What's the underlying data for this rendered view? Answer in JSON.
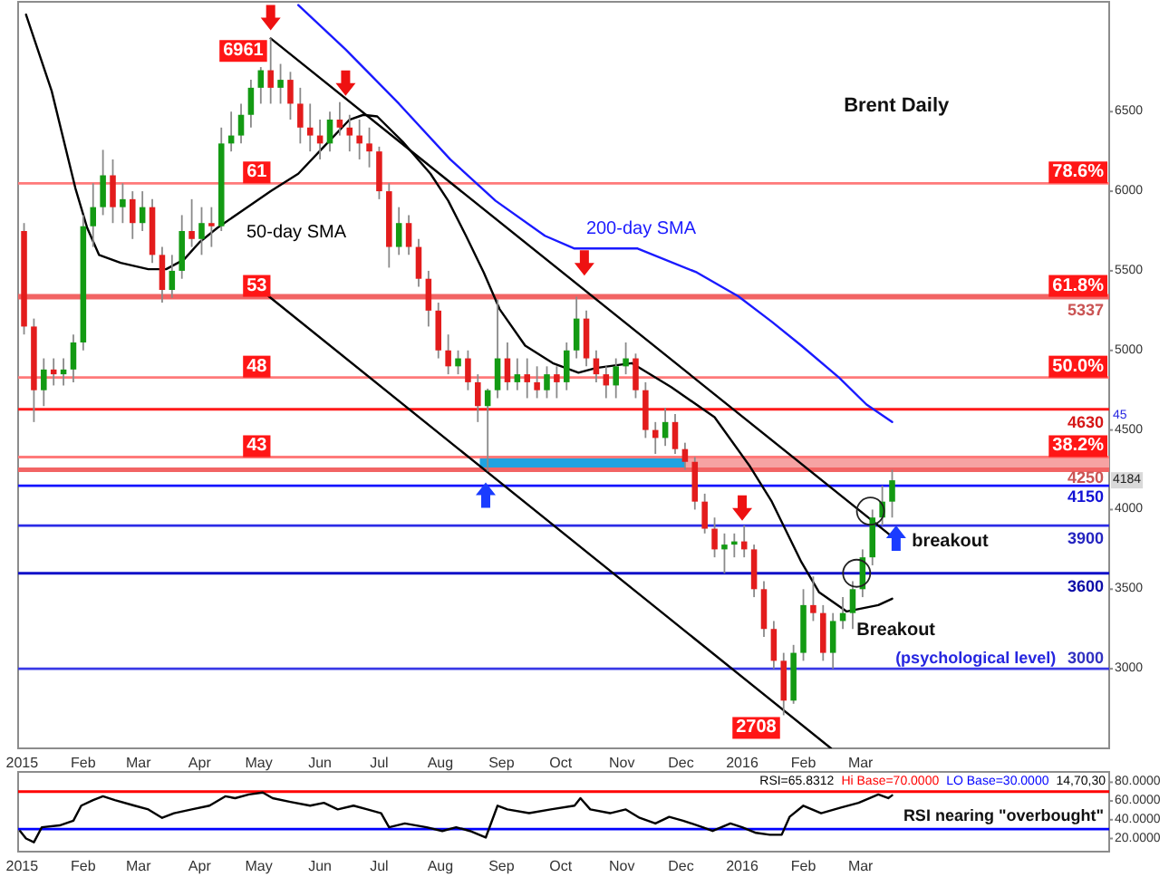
{
  "chart_data": [
    {
      "type": "candlestick",
      "title": "Brent Daily",
      "x": [
        "2015-01-02",
        "2015-01-07",
        "2015-01-12",
        "2015-01-17",
        "2015-01-22",
        "2015-01-27",
        "2015-02-01",
        "2015-02-06",
        "2015-02-11",
        "2015-02-16",
        "2015-02-21",
        "2015-02-26",
        "2015-03-03",
        "2015-03-08",
        "2015-03-13",
        "2015-03-18",
        "2015-03-23",
        "2015-03-28",
        "2015-04-02",
        "2015-04-07",
        "2015-04-12",
        "2015-04-17",
        "2015-04-22",
        "2015-04-27",
        "2015-05-02",
        "2015-05-07",
        "2015-05-12",
        "2015-05-17",
        "2015-05-22",
        "2015-05-27",
        "2015-06-01",
        "2015-06-06",
        "2015-06-11",
        "2015-06-16",
        "2015-06-21",
        "2015-06-26",
        "2015-07-01",
        "2015-07-06",
        "2015-07-11",
        "2015-07-16",
        "2015-07-21",
        "2015-07-26",
        "2015-07-31",
        "2015-08-05",
        "2015-08-10",
        "2015-08-15",
        "2015-08-20",
        "2015-08-25",
        "2015-08-30",
        "2015-09-04",
        "2015-09-09",
        "2015-09-14",
        "2015-09-19",
        "2015-09-24",
        "2015-09-29",
        "2015-10-04",
        "2015-10-09",
        "2015-10-14",
        "2015-10-19",
        "2015-10-24",
        "2015-10-29",
        "2015-11-03",
        "2015-11-08",
        "2015-11-13",
        "2015-11-18",
        "2015-11-23",
        "2015-11-28",
        "2015-12-03",
        "2015-12-08",
        "2015-12-13",
        "2015-12-18",
        "2015-12-23",
        "2015-12-28",
        "2016-01-02",
        "2016-01-07",
        "2016-01-12",
        "2016-01-17",
        "2016-01-22",
        "2016-01-27",
        "2016-02-01",
        "2016-02-06",
        "2016-02-11",
        "2016-02-16",
        "2016-02-21",
        "2016-02-26",
        "2016-03-02",
        "2016-03-07",
        "2016-03-12",
        "2016-03-17"
      ],
      "ohlc": [
        [
          5750,
          5800,
          5100,
          5150
        ],
        [
          5150,
          5200,
          4550,
          4750
        ],
        [
          4750,
          4950,
          4650,
          4880
        ],
        [
          4880,
          4950,
          4780,
          4850
        ],
        [
          4850,
          4950,
          4780,
          4880
        ],
        [
          4880,
          5100,
          4800,
          5050
        ],
        [
          5050,
          5850,
          5000,
          5780
        ],
        [
          5780,
          6050,
          5650,
          5900
        ],
        [
          5900,
          6260,
          5850,
          6100
        ],
        [
          6100,
          6200,
          5800,
          5900
        ],
        [
          5900,
          6050,
          5800,
          5950
        ],
        [
          5950,
          6000,
          5700,
          5800
        ],
        [
          5800,
          6000,
          5750,
          5900
        ],
        [
          5900,
          5950,
          5550,
          5600
        ],
        [
          5600,
          5650,
          5300,
          5380
        ],
        [
          5380,
          5600,
          5330,
          5500
        ],
        [
          5500,
          5850,
          5450,
          5750
        ],
        [
          5750,
          5950,
          5650,
          5700
        ],
        [
          5700,
          5900,
          5600,
          5800
        ],
        [
          5800,
          5900,
          5650,
          5780
        ],
        [
          5780,
          6400,
          5750,
          6300
        ],
        [
          6300,
          6500,
          6250,
          6350
        ],
        [
          6350,
          6550,
          6300,
          6480
        ],
        [
          6480,
          6700,
          6400,
          6650
        ],
        [
          6650,
          6780,
          6550,
          6760
        ],
        [
          6760,
          6961,
          6550,
          6650
        ],
        [
          6650,
          6800,
          6550,
          6700
        ],
        [
          6700,
          6750,
          6450,
          6550
        ],
        [
          6550,
          6650,
          6300,
          6400
        ],
        [
          6400,
          6550,
          6250,
          6350
        ],
        [
          6350,
          6450,
          6200,
          6300
        ],
        [
          6300,
          6500,
          6250,
          6450
        ],
        [
          6450,
          6560,
          6350,
          6400
        ],
        [
          6400,
          6480,
          6250,
          6350
        ],
        [
          6350,
          6450,
          6200,
          6300
        ],
        [
          6300,
          6400,
          6150,
          6250
        ],
        [
          6250,
          6280,
          5950,
          6000
        ],
        [
          6000,
          6050,
          5520,
          5650
        ],
        [
          5650,
          5900,
          5600,
          5800
        ],
        [
          5800,
          5850,
          5600,
          5650
        ],
        [
          5650,
          5700,
          5400,
          5450
        ],
        [
          5450,
          5500,
          5150,
          5250
        ],
        [
          5250,
          5300,
          4950,
          5000
        ],
        [
          5000,
          5100,
          4850,
          4900
        ],
        [
          4900,
          5000,
          4850,
          4950
        ],
        [
          4950,
          5000,
          4750,
          4800
        ],
        [
          4800,
          4850,
          4550,
          4650
        ],
        [
          4650,
          4760,
          4240,
          4750
        ],
        [
          4750,
          5320,
          4700,
          4950
        ],
        [
          4950,
          5050,
          4750,
          4800
        ],
        [
          4800,
          4950,
          4750,
          4850
        ],
        [
          4850,
          4950,
          4700,
          4800
        ],
        [
          4800,
          4900,
          4700,
          4750
        ],
        [
          4750,
          4900,
          4700,
          4850
        ],
        [
          4850,
          4900,
          4700,
          4800
        ],
        [
          4800,
          5050,
          4750,
          5000
        ],
        [
          5000,
          5337,
          4950,
          5200
        ],
        [
          5200,
          5250,
          4900,
          4950
        ],
        [
          4950,
          5000,
          4800,
          4850
        ],
        [
          4850,
          4900,
          4700,
          4780
        ],
        [
          4780,
          4950,
          4700,
          4900
        ],
        [
          4900,
          5050,
          4850,
          4950
        ],
        [
          4950,
          4980,
          4700,
          4750
        ],
        [
          4750,
          4800,
          4450,
          4500
        ],
        [
          4500,
          4550,
          4350,
          4450
        ],
        [
          4450,
          4640,
          4400,
          4550
        ],
        [
          4550,
          4600,
          4350,
          4380
        ],
        [
          4380,
          4420,
          4250,
          4300
        ],
        [
          4300,
          4330,
          4000,
          4050
        ],
        [
          4050,
          4100,
          3850,
          3880
        ],
        [
          3880,
          3950,
          3700,
          3750
        ],
        [
          3750,
          3850,
          3600,
          3780
        ],
        [
          3780,
          3850,
          3700,
          3800
        ],
        [
          3800,
          3900,
          3700,
          3750
        ],
        [
          3750,
          3780,
          3450,
          3500
        ],
        [
          3500,
          3550,
          3200,
          3250
        ],
        [
          3250,
          3300,
          3000,
          3050
        ],
        [
          3050,
          3100,
          2708,
          2800
        ],
        [
          2800,
          3150,
          2780,
          3100
        ],
        [
          3100,
          3500,
          3050,
          3400
        ],
        [
          3400,
          3580,
          3300,
          3350
        ],
        [
          3350,
          3400,
          3050,
          3100
        ],
        [
          3100,
          3350,
          3000,
          3300
        ],
        [
          3300,
          3450,
          3250,
          3350
        ],
        [
          3350,
          3550,
          3250,
          3500
        ],
        [
          3500,
          3750,
          3450,
          3700
        ],
        [
          3700,
          4000,
          3650,
          3950
        ],
        [
          3950,
          4150,
          3900,
          4050
        ],
        [
          4050,
          4250,
          3950,
          4184
        ]
      ],
      "colors": [
        "#e31c1c",
        "#e31c1c",
        "#139a13",
        "#e31c1c",
        "#139a13",
        "#139a13",
        "#139a13",
        "#139a13",
        "#139a13",
        "#e31c1c",
        "#139a13",
        "#e31c1c",
        "#139a13",
        "#e31c1c",
        "#e31c1c",
        "#139a13",
        "#139a13",
        "#e31c1c",
        "#139a13",
        "#e31c1c",
        "#139a13",
        "#139a13",
        "#139a13",
        "#139a13",
        "#139a13",
        "#e31c1c",
        "#139a13",
        "#e31c1c",
        "#e31c1c",
        "#e31c1c",
        "#e31c1c",
        "#139a13",
        "#e31c1c",
        "#e31c1c",
        "#e31c1c",
        "#e31c1c",
        "#e31c1c",
        "#e31c1c",
        "#139a13",
        "#e31c1c",
        "#e31c1c",
        "#e31c1c",
        "#e31c1c",
        "#e31c1c",
        "#139a13",
        "#e31c1c",
        "#e31c1c",
        "#139a13",
        "#139a13",
        "#e31c1c",
        "#139a13",
        "#e31c1c",
        "#e31c1c",
        "#139a13",
        "#e31c1c",
        "#139a13",
        "#139a13",
        "#e31c1c",
        "#e31c1c",
        "#e31c1c",
        "#139a13",
        "#139a13",
        "#e31c1c",
        "#e31c1c",
        "#e31c1c",
        "#139a13",
        "#e31c1c",
        "#e31c1c",
        "#e31c1c",
        "#e31c1c",
        "#e31c1c",
        "#139a13",
        "#139a13",
        "#e31c1c",
        "#e31c1c",
        "#e31c1c",
        "#e31c1c",
        "#e31c1c",
        "#139a13",
        "#139a13",
        "#e31c1c",
        "#e31c1c",
        "#139a13",
        "#139a13",
        "#139a13",
        "#139a13",
        "#139a13",
        "#139a13",
        "#139a13"
      ],
      "series": [
        {
          "type": "line",
          "name": "50-day SMA",
          "color": "#000000",
          "x": [
            "2015-01-03",
            "2015-01-16",
            "2015-01-28",
            "2015-02-03",
            "2015-02-09",
            "2015-02-20",
            "2015-03-06",
            "2015-03-15",
            "2015-03-24",
            "2015-04-01",
            "2015-04-10",
            "2015-04-24",
            "2015-05-07",
            "2015-05-21",
            "2015-06-03",
            "2015-06-16",
            "2015-06-23",
            "2015-06-30",
            "2015-07-13",
            "2015-07-27",
            "2015-08-05",
            "2015-08-14",
            "2015-08-23",
            "2015-08-31",
            "2015-09-13",
            "2015-09-27",
            "2015-10-10",
            "2015-10-19",
            "2015-11-06",
            "2015-11-26",
            "2015-12-18",
            "2016-01-05",
            "2016-01-16",
            "2016-01-31",
            "2016-02-09",
            "2016-02-23",
            "2016-03-10",
            "2016-03-17"
          ],
          "values": [
            7110,
            6630,
            6020,
            5770,
            5600,
            5550,
            5510,
            5510,
            5570,
            5680,
            5770,
            5890,
            6000,
            6110,
            6280,
            6450,
            6480,
            6470,
            6310,
            6110,
            5940,
            5720,
            5490,
            5260,
            5030,
            4920,
            4860,
            4890,
            4920,
            4770,
            4580,
            4270,
            4050,
            3670,
            3480,
            3360,
            3400,
            3440
          ]
        },
        {
          "type": "line",
          "name": "200-day SMA",
          "color": "#1a1aff",
          "x": [
            "2015-05-21",
            "2015-06-14",
            "2015-07-11",
            "2015-08-06",
            "2015-08-29",
            "2015-09-23",
            "2015-10-08",
            "2015-11-09",
            "2015-12-09",
            "2015-12-30",
            "2016-01-16",
            "2016-01-31",
            "2016-02-19",
            "2016-03-04",
            "2016-03-17"
          ],
          "values": [
            7170,
            6890,
            6550,
            6200,
            5940,
            5720,
            5640,
            5640,
            5490,
            5340,
            5180,
            5030,
            4830,
            4660,
            4550
          ]
        },
        {
          "type": "line",
          "color": "#000000",
          "x": [
            "2015-05-07",
            "2016-03-17"
          ],
          "values": [
            6960,
            3830
          ]
        },
        {
          "type": "line",
          "color": "#000000",
          "x": [
            "2015-05-06",
            "2016-02-15"
          ],
          "values": [
            5340,
            2500
          ]
        },
        {
          "type": "area",
          "color": "#1fa3e0",
          "x": [
            "2015-08-21",
            "2015-12-03"
          ],
          "values": [
            null,
            null
          ],
          "lower": [
            4250,
            4250
          ],
          "upper": [
            4330,
            4330
          ]
        },
        {
          "type": "area",
          "color": "#f6a3a3",
          "x": [
            "2015-12-03",
            "2016-07-05"
          ],
          "values": [
            null,
            null
          ],
          "lower": [
            4250,
            4250
          ],
          "upper": [
            4330,
            4330
          ]
        }
      ],
      "xlim": [
        "2014-12-30",
        "2016-07-05"
      ],
      "xticks": [
        {
          "value": "2015-01-01",
          "label": "2015"
        },
        {
          "value": "2015-02-01",
          "label": "Feb"
        },
        {
          "value": "2015-03-01",
          "label": "Mar"
        },
        {
          "value": "2015-04-01",
          "label": "Apr"
        },
        {
          "value": "2015-05-01",
          "label": "May"
        },
        {
          "value": "2015-06-01",
          "label": "Jun"
        },
        {
          "value": "2015-07-01",
          "label": "Jul"
        },
        {
          "value": "2015-08-01",
          "label": "Aug"
        },
        {
          "value": "2015-09-01",
          "label": "Sep"
        },
        {
          "value": "2015-10-01",
          "label": "Oct"
        },
        {
          "value": "2015-11-01",
          "label": "Nov"
        },
        {
          "value": "2015-12-01",
          "label": "Dec"
        },
        {
          "value": "2016-01-01",
          "label": "2016"
        },
        {
          "value": "2016-02-01",
          "label": "Feb"
        },
        {
          "value": "2016-03-01",
          "label": "Mar"
        }
      ],
      "ylim": [
        2500,
        7190
      ],
      "yticks": [
        3000,
        3500,
        4000,
        4500,
        5000,
        5500,
        6000,
        6500
      ],
      "ref_lines": [
        {
          "axis": "y",
          "value": 6050,
          "label": null,
          "color": "#ff7a7a"
        },
        {
          "axis": "y",
          "value": 5337,
          "label": "5337",
          "color": "#f26464"
        },
        {
          "axis": "y",
          "value": 4830,
          "label": null,
          "color": "#ff7a7a"
        },
        {
          "axis": "y",
          "value": 4630,
          "label": "4630",
          "color": "#ff1a1a"
        },
        {
          "axis": "y",
          "value": 4330,
          "label": null,
          "color": "#ff7a7a"
        },
        {
          "axis": "y",
          "value": 4250,
          "label": "4250",
          "color": "#f26464"
        },
        {
          "axis": "y",
          "value": 4150,
          "label": "4150",
          "color": "#1414ff"
        },
        {
          "axis": "y",
          "value": 3900,
          "label": "3900",
          "color": "#2b2be6"
        },
        {
          "axis": "y",
          "value": 3600,
          "label": "3600",
          "color": "#1010c8"
        },
        {
          "axis": "y",
          "value": 3000,
          "label": "3000",
          "color": "#3a3ae6"
        }
      ],
      "annotations": [
        {
          "text": "6961",
          "x": "2015-05-07",
          "y": 6961
        },
        {
          "text": "2708",
          "x": "2016-01-22",
          "y": 2708
        },
        {
          "text": "61",
          "x": "2015-04-23",
          "y": 6050
        },
        {
          "text": "53",
          "x": "2015-04-23",
          "y": 5337
        },
        {
          "text": "48",
          "x": "2015-04-23",
          "y": 4830
        },
        {
          "text": "43",
          "x": "2015-04-23",
          "y": 4330
        },
        {
          "text": "78.6%",
          "x": "2016-07-05",
          "y": 6050
        },
        {
          "text": "61.8%",
          "x": "2016-07-05",
          "y": 5337
        },
        {
          "text": "50.0%",
          "x": "2016-07-05",
          "y": 4830
        },
        {
          "text": "38.2%",
          "x": "2016-07-05",
          "y": 4330
        },
        {
          "text": "(psychological level)",
          "x": "2016-06-08",
          "y": 3000
        },
        {
          "text": "breakout",
          "x": "2016-03-27",
          "y": 3900
        },
        {
          "text": "Breakout",
          "x": "2016-02-28",
          "y": 3240
        },
        {
          "text": "4184",
          "x": "2016-07-05",
          "y": 4184
        },
        {
          "text": "45",
          "x": "2016-07-05",
          "y": 4590
        }
      ]
    },
    {
      "type": "line",
      "color": "#000000",
      "x": [
        "2014-12-31",
        "2015-01-03",
        "2015-01-07",
        "2015-01-11",
        "2015-01-20",
        "2015-01-27",
        "2015-01-31",
        "2015-02-06",
        "2015-02-11",
        "2015-02-17",
        "2015-02-27",
        "2015-03-06",
        "2015-03-13",
        "2015-03-19",
        "2015-03-28",
        "2015-04-06",
        "2015-04-14",
        "2015-04-19",
        "2015-04-26",
        "2015-05-03",
        "2015-05-08",
        "2015-05-17",
        "2015-05-27",
        "2015-06-03",
        "2015-06-10",
        "2015-06-18",
        "2015-06-25",
        "2015-07-02",
        "2015-07-06",
        "2015-07-14",
        "2015-07-25",
        "2015-08-02",
        "2015-08-09",
        "2015-08-16",
        "2015-08-24",
        "2015-08-30",
        "2015-09-04",
        "2015-09-15",
        "2015-09-26",
        "2015-10-08",
        "2015-10-11",
        "2015-10-16",
        "2015-10-26",
        "2015-11-03",
        "2015-11-10",
        "2015-11-18",
        "2015-11-25",
        "2015-12-02",
        "2015-12-12",
        "2015-12-17",
        "2015-12-26",
        "2016-01-01",
        "2016-01-08",
        "2016-01-15",
        "2016-01-21",
        "2016-01-25",
        "2016-02-01",
        "2016-02-10",
        "2016-02-20",
        "2016-02-29",
        "2016-03-10",
        "2016-03-15",
        "2016-03-17"
      ],
      "values": [
        28,
        20,
        16,
        32,
        34,
        39,
        55,
        61,
        65,
        61,
        55,
        51,
        42,
        47,
        51,
        55,
        65,
        63,
        67,
        69,
        63,
        59,
        55,
        58,
        51,
        55,
        51,
        47,
        32,
        36,
        32,
        28,
        32,
        28,
        21,
        55,
        51,
        47,
        51,
        55,
        63,
        51,
        47,
        51,
        42,
        36,
        43,
        39,
        32,
        28,
        36,
        32,
        26,
        24,
        24,
        43,
        55,
        47,
        53,
        58,
        67,
        63,
        66
      ],
      "xlim": [
        "2014-12-30",
        "2016-07-05"
      ],
      "xticks": [
        {
          "value": "2015-01-01",
          "label": "2015"
        },
        {
          "value": "2015-02-01",
          "label": "Feb"
        },
        {
          "value": "2015-03-01",
          "label": "Mar"
        },
        {
          "value": "2015-04-01",
          "label": "Apr"
        },
        {
          "value": "2015-05-01",
          "label": "May"
        },
        {
          "value": "2015-06-01",
          "label": "Jun"
        },
        {
          "value": "2015-07-01",
          "label": "Jul"
        },
        {
          "value": "2015-08-01",
          "label": "Aug"
        },
        {
          "value": "2015-09-01",
          "label": "Sep"
        },
        {
          "value": "2015-10-01",
          "label": "Oct"
        },
        {
          "value": "2015-11-01",
          "label": "Nov"
        },
        {
          "value": "2015-12-01",
          "label": "Dec"
        },
        {
          "value": "2016-01-01",
          "label": "2016"
        },
        {
          "value": "2016-02-01",
          "label": "Feb"
        },
        {
          "value": "2016-03-01",
          "label": "Mar"
        }
      ],
      "ylim": [
        6,
        91
      ],
      "yticks": [
        {
          "value": 20,
          "label": "20.0000"
        },
        {
          "value": 40,
          "label": "40.0000"
        },
        {
          "value": 60,
          "label": "60.0000"
        },
        {
          "value": 80,
          "label": "80.0000"
        }
      ],
      "ref_lines": [
        {
          "axis": "y",
          "value": 70,
          "label": "Hi Base=70.0000",
          "color": "#ff0000"
        },
        {
          "axis": "y",
          "value": 30,
          "label": "LO Base=30.0000",
          "color": "#0000ff"
        }
      ],
      "annotations": [
        "RSI=65.8312",
        "14,70,30",
        "RSI nearing \"overbought\""
      ]
    }
  ]
}
